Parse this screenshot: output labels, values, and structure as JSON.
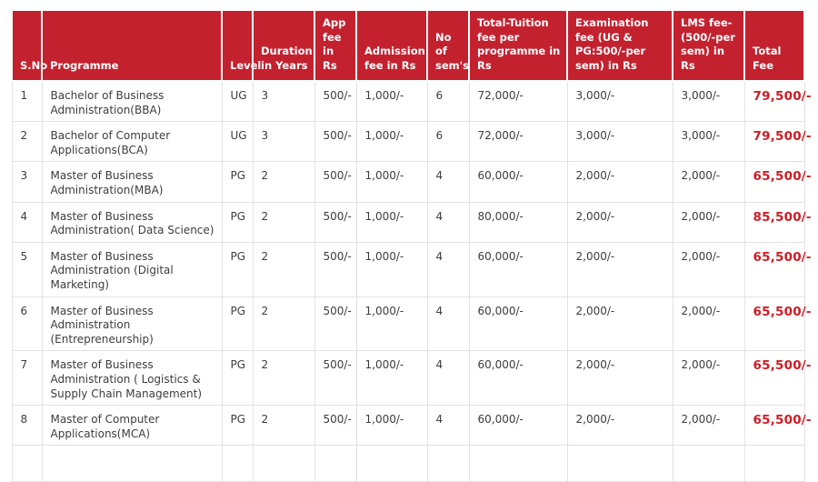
{
  "colors": {
    "header_bg": "#c4212f",
    "header_text": "#ffffff",
    "total_fee_text": "#d01b24",
    "body_text": "#3d3d3d",
    "cell_border": "#e2e2e2"
  },
  "table": {
    "columns": [
      {
        "id": "sno",
        "label": "S.No"
      },
      {
        "id": "programme",
        "label": "Programme"
      },
      {
        "id": "level",
        "label": "Level"
      },
      {
        "id": "duration",
        "label": "Duration in Years"
      },
      {
        "id": "app_fee",
        "label": "App fee in Rs"
      },
      {
        "id": "admission_fee",
        "label": "Admission fee in Rs"
      },
      {
        "id": "sems",
        "label": "No of sem's"
      },
      {
        "id": "tuition_fee",
        "label": "Total-Tuition fee per programme in Rs"
      },
      {
        "id": "exam_fee",
        "label": "Examination fee (UG & PG:500/-per sem) in Rs"
      },
      {
        "id": "lms_fee",
        "label": "LMS fee- (500/-per sem) in Rs"
      },
      {
        "id": "total_fee",
        "label": "Total Fee"
      }
    ],
    "rows": [
      {
        "sno": "1",
        "programme": "Bachelor of Business Administration(BBA)",
        "level": "UG",
        "duration": "3",
        "app_fee": "500/-",
        "admission_fee": "1,000/-",
        "sems": "6",
        "tuition_fee": "72,000/-",
        "exam_fee": "3,000/-",
        "lms_fee": "3,000/-",
        "total_fee": "79,500/-"
      },
      {
        "sno": "2",
        "programme": "Bachelor of Computer Applications(BCA)",
        "level": "UG",
        "duration": "3",
        "app_fee": "500/-",
        "admission_fee": "1,000/-",
        "sems": "6",
        "tuition_fee": "72,000/-",
        "exam_fee": "3,000/-",
        "lms_fee": "3,000/-",
        "total_fee": "79,500/-"
      },
      {
        "sno": "3",
        "programme": "Master of Business Administration(MBA)",
        "level": "PG",
        "duration": "2",
        "app_fee": "500/-",
        "admission_fee": "1,000/-",
        "sems": "4",
        "tuition_fee": "60,000/-",
        "exam_fee": "2,000/-",
        "lms_fee": "2,000/-",
        "total_fee": "65,500/-"
      },
      {
        "sno": "4",
        "programme": "Master of Business Administration( Data Science)",
        "level": "PG",
        "duration": "2",
        "app_fee": "500/-",
        "admission_fee": "1,000/-",
        "sems": "4",
        "tuition_fee": "80,000/-",
        "exam_fee": "2,000/-",
        "lms_fee": "2,000/-",
        "total_fee": "85,500/-"
      },
      {
        "sno": "5",
        "programme": "Master of Business Administration (Digital Marketing)",
        "level": "PG",
        "duration": "2",
        "app_fee": "500/-",
        "admission_fee": "1,000/-",
        "sems": "4",
        "tuition_fee": "60,000/-",
        "exam_fee": "2,000/-",
        "lms_fee": "2,000/-",
        "total_fee": "65,500/-"
      },
      {
        "sno": "6",
        "programme": "Master of Business Administration (Entrepreneurship)",
        "level": "PG",
        "duration": "2",
        "app_fee": "500/-",
        "admission_fee": "1,000/-",
        "sems": "4",
        "tuition_fee": "60,000/-",
        "exam_fee": "2,000/-",
        "lms_fee": "2,000/-",
        "total_fee": "65,500/-"
      },
      {
        "sno": "7",
        "programme": "Master of Business Administration ( Logistics & Supply Chain Management)",
        "level": "PG",
        "duration": "2",
        "app_fee": "500/-",
        "admission_fee": "1,000/-",
        "sems": "4",
        "tuition_fee": "60,000/-",
        "exam_fee": "2,000/-",
        "lms_fee": "2,000/-",
        "total_fee": "65,500/-"
      },
      {
        "sno": "8",
        "programme": "Master of Computer Applications(MCA)",
        "level": "PG",
        "duration": "2",
        "app_fee": "500/-",
        "admission_fee": "1,000/-",
        "sems": "4",
        "tuition_fee": "60,000/-",
        "exam_fee": "2,000/-",
        "lms_fee": "2,000/-",
        "total_fee": "65,500/-"
      }
    ]
  }
}
